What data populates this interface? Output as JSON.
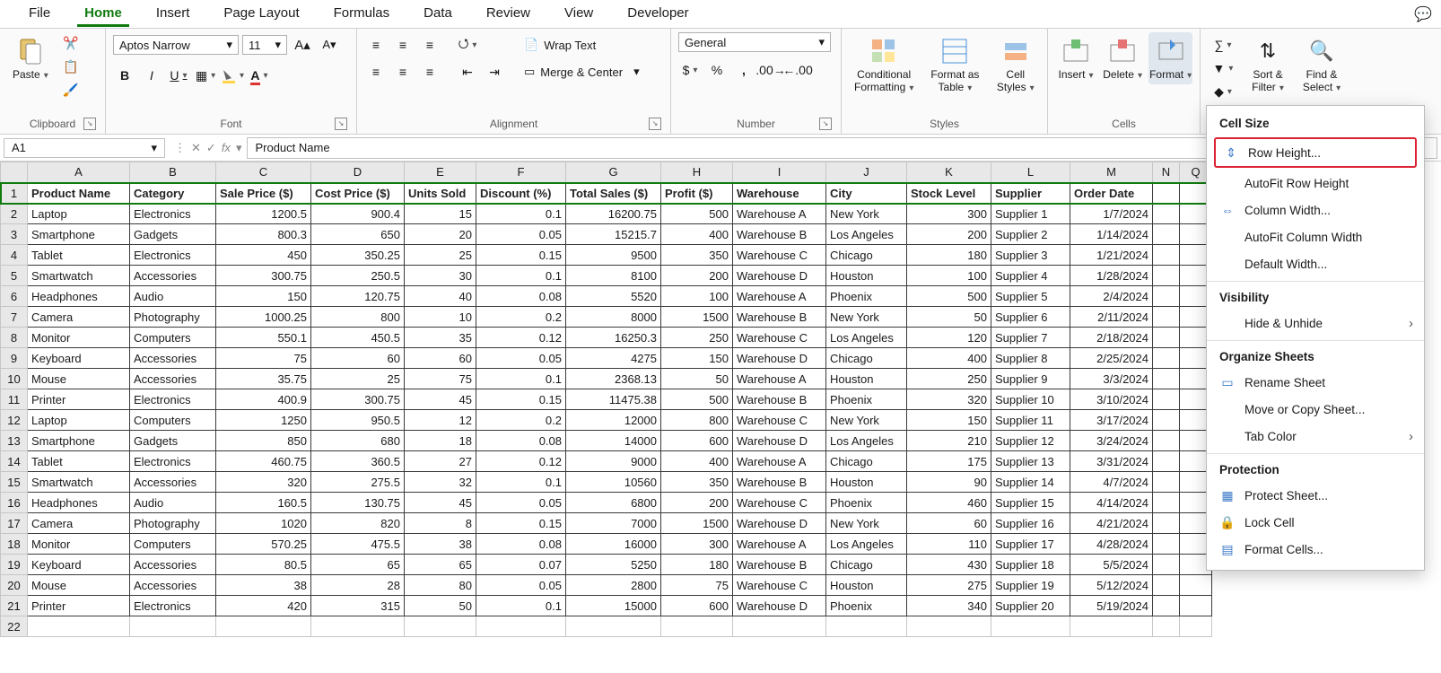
{
  "tabs": {
    "items": [
      "File",
      "Home",
      "Insert",
      "Page Layout",
      "Formulas",
      "Data",
      "Review",
      "View",
      "Developer"
    ],
    "active_index": 1
  },
  "ribbon": {
    "clipboard": {
      "label": "Clipboard",
      "paste": "Paste"
    },
    "font": {
      "label": "Font",
      "family": "Aptos Narrow",
      "size": "11"
    },
    "alignment": {
      "label": "Alignment",
      "wrap": "Wrap Text",
      "merge": "Merge & Center"
    },
    "number": {
      "label": "Number",
      "format": "General"
    },
    "styles": {
      "label": "Styles",
      "cond": "Conditional Formatting",
      "table": "Format as Table",
      "cell": "Cell Styles"
    },
    "cells": {
      "label": "Cells",
      "insert": "Insert",
      "delete": "Delete",
      "format": "Format"
    },
    "editing": {
      "sort": "Sort & Filter",
      "find": "Find & Select"
    }
  },
  "namebox": "A1",
  "formula": "Product Name",
  "columns": {
    "letters": [
      "A",
      "B",
      "C",
      "D",
      "E",
      "F",
      "G",
      "H",
      "I",
      "J",
      "K",
      "L",
      "M",
      "N",
      "Q"
    ],
    "widths": [
      114,
      96,
      106,
      104,
      80,
      100,
      106,
      80,
      104,
      90,
      94,
      88,
      92,
      30,
      36
    ],
    "headers": [
      "Product Name",
      "Category",
      "Sale Price ($)",
      "Cost Price ($)",
      "Units Sold",
      "Discount (%)",
      "Total Sales ($)",
      "Profit ($)",
      "Warehouse",
      "City",
      "Stock Level",
      "Supplier",
      "Order Date"
    ],
    "aligns": [
      "l",
      "l",
      "r",
      "r",
      "r",
      "r",
      "r",
      "r",
      "l",
      "l",
      "r",
      "l",
      "r"
    ]
  },
  "rows": [
    [
      "Laptop",
      "Electronics",
      "1200.5",
      "900.4",
      "15",
      "0.1",
      "16200.75",
      "500",
      "Warehouse A",
      "New York",
      "300",
      "Supplier 1",
      "1/7/2024"
    ],
    [
      "Smartphone",
      "Gadgets",
      "800.3",
      "650",
      "20",
      "0.05",
      "15215.7",
      "400",
      "Warehouse B",
      "Los Angeles",
      "200",
      "Supplier 2",
      "1/14/2024"
    ],
    [
      "Tablet",
      "Electronics",
      "450",
      "350.25",
      "25",
      "0.15",
      "9500",
      "350",
      "Warehouse C",
      "Chicago",
      "180",
      "Supplier 3",
      "1/21/2024"
    ],
    [
      "Smartwatch",
      "Accessories",
      "300.75",
      "250.5",
      "30",
      "0.1",
      "8100",
      "200",
      "Warehouse D",
      "Houston",
      "100",
      "Supplier 4",
      "1/28/2024"
    ],
    [
      "Headphones",
      "Audio",
      "150",
      "120.75",
      "40",
      "0.08",
      "5520",
      "100",
      "Warehouse A",
      "Phoenix",
      "500",
      "Supplier 5",
      "2/4/2024"
    ],
    [
      "Camera",
      "Photography",
      "1000.25",
      "800",
      "10",
      "0.2",
      "8000",
      "1500",
      "Warehouse B",
      "New York",
      "50",
      "Supplier 6",
      "2/11/2024"
    ],
    [
      "Monitor",
      "Computers",
      "550.1",
      "450.5",
      "35",
      "0.12",
      "16250.3",
      "250",
      "Warehouse C",
      "Los Angeles",
      "120",
      "Supplier 7",
      "2/18/2024"
    ],
    [
      "Keyboard",
      "Accessories",
      "75",
      "60",
      "60",
      "0.05",
      "4275",
      "150",
      "Warehouse D",
      "Chicago",
      "400",
      "Supplier 8",
      "2/25/2024"
    ],
    [
      "Mouse",
      "Accessories",
      "35.75",
      "25",
      "75",
      "0.1",
      "2368.13",
      "50",
      "Warehouse A",
      "Houston",
      "250",
      "Supplier 9",
      "3/3/2024"
    ],
    [
      "Printer",
      "Electronics",
      "400.9",
      "300.75",
      "45",
      "0.15",
      "11475.38",
      "500",
      "Warehouse B",
      "Phoenix",
      "320",
      "Supplier 10",
      "3/10/2024"
    ],
    [
      "Laptop",
      "Computers",
      "1250",
      "950.5",
      "12",
      "0.2",
      "12000",
      "800",
      "Warehouse C",
      "New York",
      "150",
      "Supplier 11",
      "3/17/2024"
    ],
    [
      "Smartphone",
      "Gadgets",
      "850",
      "680",
      "18",
      "0.08",
      "14000",
      "600",
      "Warehouse D",
      "Los Angeles",
      "210",
      "Supplier 12",
      "3/24/2024"
    ],
    [
      "Tablet",
      "Electronics",
      "460.75",
      "360.5",
      "27",
      "0.12",
      "9000",
      "400",
      "Warehouse A",
      "Chicago",
      "175",
      "Supplier 13",
      "3/31/2024"
    ],
    [
      "Smartwatch",
      "Accessories",
      "320",
      "275.5",
      "32",
      "0.1",
      "10560",
      "350",
      "Warehouse B",
      "Houston",
      "90",
      "Supplier 14",
      "4/7/2024"
    ],
    [
      "Headphones",
      "Audio",
      "160.5",
      "130.75",
      "45",
      "0.05",
      "6800",
      "200",
      "Warehouse C",
      "Phoenix",
      "460",
      "Supplier 15",
      "4/14/2024"
    ],
    [
      "Camera",
      "Photography",
      "1020",
      "820",
      "8",
      "0.15",
      "7000",
      "1500",
      "Warehouse D",
      "New York",
      "60",
      "Supplier 16",
      "4/21/2024"
    ],
    [
      "Monitor",
      "Computers",
      "570.25",
      "475.5",
      "38",
      "0.08",
      "16000",
      "300",
      "Warehouse A",
      "Los Angeles",
      "110",
      "Supplier 17",
      "4/28/2024"
    ],
    [
      "Keyboard",
      "Accessories",
      "80.5",
      "65",
      "65",
      "0.07",
      "5250",
      "180",
      "Warehouse B",
      "Chicago",
      "430",
      "Supplier 18",
      "5/5/2024"
    ],
    [
      "Mouse",
      "Accessories",
      "38",
      "28",
      "80",
      "0.05",
      "2800",
      "75",
      "Warehouse C",
      "Houston",
      "275",
      "Supplier 19",
      "5/12/2024"
    ],
    [
      "Printer",
      "Electronics",
      "420",
      "315",
      "50",
      "0.1",
      "15000",
      "600",
      "Warehouse D",
      "Phoenix",
      "340",
      "Supplier 20",
      "5/19/2024"
    ]
  ],
  "format_menu": {
    "s1_title": "Cell Size",
    "row_height": "Row Height...",
    "autofit_row": "AutoFit Row Height",
    "col_width": "Column Width...",
    "autofit_col": "AutoFit Column Width",
    "def_width": "Default Width...",
    "s2_title": "Visibility",
    "hide": "Hide & Unhide",
    "s3_title": "Organize Sheets",
    "rename": "Rename Sheet",
    "move": "Move or Copy Sheet...",
    "tabcolor": "Tab Color",
    "s4_title": "Protection",
    "protect": "Protect Sheet...",
    "lock": "Lock Cell",
    "fcells": "Format Cells..."
  },
  "colors": {
    "accent": "#107c10",
    "highlight_border": "#d23"
  }
}
